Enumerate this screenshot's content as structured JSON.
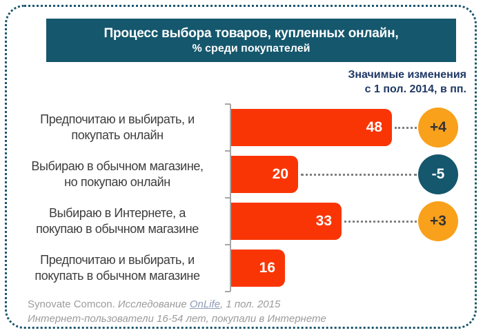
{
  "title": {
    "line1": "Процесс выбора товаров, купленных онлайн,",
    "line2": "% среди покупателей"
  },
  "legend": {
    "line1": "Значимые изменения",
    "line2": "с 1 пол. 2014, в пп."
  },
  "chart_data": {
    "type": "bar",
    "orientation": "horizontal",
    "title": "Процесс выбора товаров, купленных онлайн, % среди покупателей",
    "categories": [
      "Предпочитаю и выбирать, и покупать онлайн",
      "Выбираю в обычном магазине, но покупаю онлайн",
      "Выбираю в Интернете, а покупаю в обычном магазине",
      "Предпочитаю и выбирать, и покупать в обычном магазине"
    ],
    "values": [
      48,
      20,
      33,
      16
    ],
    "xlim": [
      0,
      50
    ],
    "value_labels_inside_bars": true,
    "grid": false,
    "annotations_header": "Значимые изменения с 1 пол. 2014, в пп.",
    "changes_pp": [
      "+4",
      "-5",
      "+3",
      null
    ],
    "colors": {
      "bar": "#fa3505",
      "change_positive": "#f9a11b",
      "change_negative": "#15576d",
      "banner": "#15576d",
      "header_text": "#1f3864"
    }
  },
  "rows": [
    {
      "label_line1": "Предпочитаю и выбирать, и",
      "label_line2": "покупать онлайн",
      "value": 48,
      "change": "+4",
      "change_color": "#f9a11b",
      "change_text_color": "#333333"
    },
    {
      "label_line1": "Выбираю в обычном магазине,",
      "label_line2": "но покупаю онлайн",
      "value": 20,
      "change": "-5",
      "change_color": "#15576d",
      "change_text_color": "#ffffff"
    },
    {
      "label_line1": "Выбираю в Интернете, а",
      "label_line2": "покупаю в обычном магазине",
      "value": 33,
      "change": "+3",
      "change_color": "#f9a11b",
      "change_text_color": "#333333"
    },
    {
      "label_line1": "Предпочитаю и выбирать, и",
      "label_line2": "покупать в обычном магазине",
      "value": 16,
      "change": null,
      "change_color": null,
      "change_text_color": null
    }
  ],
  "footer": {
    "line1_prefix": "Synovate Comcon. ",
    "line1_italic": "Исследование ",
    "link_text": "OnLife",
    "line1_suffix": ", 1 пол. 2015",
    "line2": "Интернет-пользователи 16-54 лет, покупали в Интернете"
  }
}
